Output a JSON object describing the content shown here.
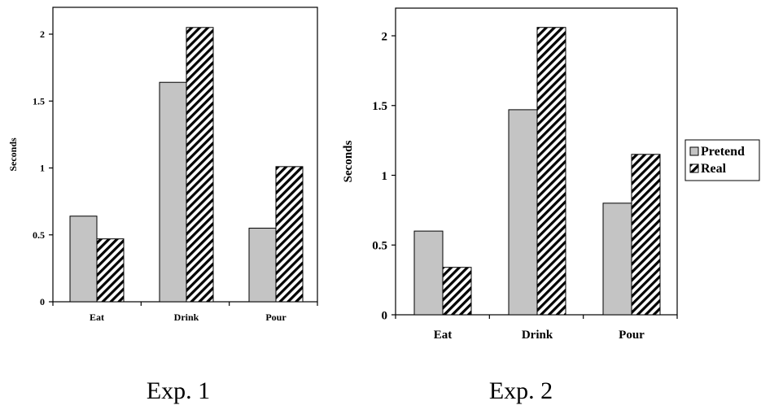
{
  "legend": {
    "position": "right"
  },
  "chart_data": [
    {
      "type": "bar",
      "title": "",
      "caption": "Exp. 1",
      "xlabel": "",
      "ylabel": "Seconds",
      "categories": [
        "Eat",
        "Drink",
        "Pour"
      ],
      "series": [
        {
          "name": "Pretend",
          "values": [
            0.64,
            1.64,
            0.55
          ]
        },
        {
          "name": "Real",
          "values": [
            0.47,
            2.05,
            1.01
          ]
        }
      ],
      "ylim": [
        0,
        2.2
      ],
      "yticks": [
        "0",
        "0.5",
        "1",
        "1.5",
        "2"
      ],
      "grid": false
    },
    {
      "type": "bar",
      "title": "",
      "caption": "Exp. 2",
      "xlabel": "",
      "ylabel": "Seconds",
      "categories": [
        "Eat",
        "Drink",
        "Pour"
      ],
      "series": [
        {
          "name": "Pretend",
          "values": [
            0.6,
            1.47,
            0.8
          ]
        },
        {
          "name": "Real",
          "values": [
            0.34,
            2.06,
            1.15
          ]
        }
      ],
      "ylim": [
        0,
        2.2
      ],
      "yticks": [
        "0",
        "0.5",
        "1",
        "1.5",
        "2"
      ],
      "grid": false
    }
  ],
  "colors": {
    "pretend_fill": "#c4c4c4",
    "real_fill": "#ffffff",
    "real_hatch": "#000000",
    "axis": "#000000"
  }
}
